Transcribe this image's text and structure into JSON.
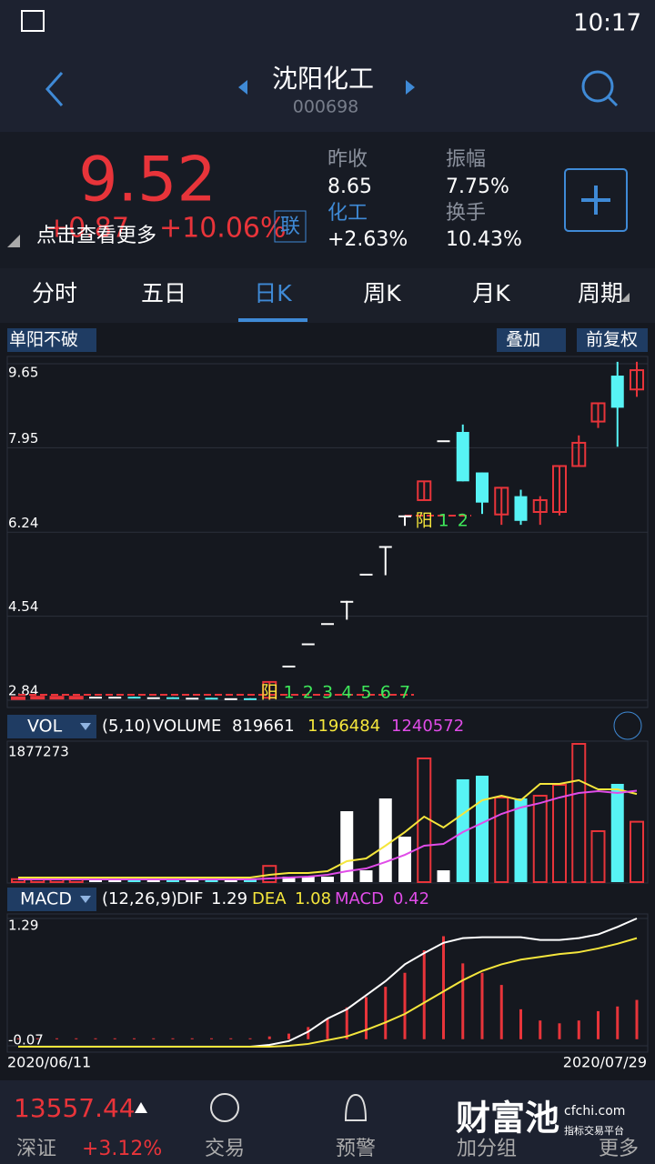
{
  "status": {
    "time": "10:17"
  },
  "header": {
    "name": "沈阳化工",
    "code": "000698"
  },
  "quote": {
    "price": "9.52",
    "change": "+0.87",
    "change_pct": "+10.06%",
    "link": "联",
    "more_hint": "点击查看更多",
    "stats": [
      {
        "label": "昨收",
        "value": "8.65"
      },
      {
        "label": "振幅",
        "value": "7.75%"
      },
      {
        "label": "化工",
        "value": "+2.63%"
      },
      {
        "label": "换手",
        "value": "10.43%"
      }
    ]
  },
  "tabs": [
    "分时",
    "五日",
    "日K",
    "周K",
    "月K",
    "周期"
  ],
  "chart": {
    "indicator": "单阳不破",
    "overlay": "叠加",
    "adjust": "前复权",
    "ylim": [
      2.84,
      9.65
    ],
    "yticks": [
      9.65,
      7.95,
      6.24,
      4.54,
      2.84
    ],
    "candles": [
      {
        "o": 2.89,
        "h": 2.9,
        "l": 2.89,
        "c": 2.9
      },
      {
        "o": 2.9,
        "h": 2.91,
        "l": 2.9,
        "c": 2.91
      },
      {
        "o": 2.9,
        "h": 2.91,
        "l": 2.9,
        "c": 2.91
      },
      {
        "o": 2.9,
        "h": 2.91,
        "l": 2.9,
        "c": 2.91
      },
      {
        "o": 2.91,
        "h": 2.91,
        "l": 2.91,
        "c": 2.91
      },
      {
        "o": 2.91,
        "h": 2.91,
        "l": 2.91,
        "c": 2.91
      },
      {
        "o": 2.91,
        "h": 2.91,
        "l": 2.9,
        "c": 2.9
      },
      {
        "o": 2.9,
        "h": 2.9,
        "l": 2.9,
        "c": 2.9
      },
      {
        "o": 2.9,
        "h": 2.9,
        "l": 2.89,
        "c": 2.89
      },
      {
        "o": 2.89,
        "h": 2.89,
        "l": 2.89,
        "c": 2.89
      },
      {
        "o": 2.89,
        "h": 2.89,
        "l": 2.88,
        "c": 2.88
      },
      {
        "o": 2.88,
        "h": 2.88,
        "l": 2.88,
        "c": 2.88
      },
      {
        "o": 2.88,
        "h": 2.88,
        "l": 2.87,
        "c": 2.87
      },
      {
        "o": 2.89,
        "h": 3.21,
        "l": 2.85,
        "c": 3.21
      },
      {
        "o": 3.54,
        "h": 3.54,
        "l": 3.54,
        "c": 3.54
      },
      {
        "o": 3.99,
        "h": 3.99,
        "l": 3.99,
        "c": 3.99
      },
      {
        "o": 4.4,
        "h": 4.4,
        "l": 4.4,
        "c": 4.4
      },
      {
        "o": 4.85,
        "h": 4.85,
        "l": 4.47,
        "c": 4.85
      },
      {
        "o": 5.4,
        "h": 5.4,
        "l": 5.4,
        "c": 5.4
      },
      {
        "o": 5.96,
        "h": 5.96,
        "l": 5.37,
        "c": 5.96
      },
      {
        "o": 6.58,
        "h": 6.58,
        "l": 6.37,
        "c": 6.58
      },
      {
        "o": 6.89,
        "h": 7.27,
        "l": 6.89,
        "c": 7.27
      },
      {
        "o": 8.1,
        "h": 8.1,
        "l": 8.1,
        "c": 8.1
      },
      {
        "o": 8.27,
        "h": 8.42,
        "l": 7.27,
        "c": 7.27
      },
      {
        "o": 7.45,
        "h": 7.45,
        "l": 6.61,
        "c": 6.84
      },
      {
        "o": 6.6,
        "h": 7.14,
        "l": 6.39,
        "c": 7.14
      },
      {
        "o": 6.97,
        "h": 7.1,
        "l": 6.39,
        "c": 6.47
      },
      {
        "o": 6.65,
        "h": 6.97,
        "l": 6.39,
        "c": 6.89
      },
      {
        "o": 6.65,
        "h": 7.58,
        "l": 6.58,
        "c": 7.58
      },
      {
        "o": 7.58,
        "h": 8.2,
        "l": 7.58,
        "c": 8.05
      },
      {
        "o": 8.48,
        "h": 8.85,
        "l": 8.35,
        "c": 8.85
      },
      {
        "o": 9.41,
        "h": 9.69,
        "l": 7.97,
        "c": 8.76
      },
      {
        "o": 9.13,
        "h": 9.69,
        "l": 8.98,
        "c": 9.52
      }
    ],
    "signals": [
      {
        "mark": "阳",
        "counts": [
          1,
          2,
          3,
          4,
          5,
          6,
          7
        ]
      },
      {
        "mark": "阳",
        "counts": [
          1,
          2
        ]
      }
    ],
    "volume": {
      "label": "VOL",
      "params": "(5,10)",
      "name": "VOLUME",
      "last": 819661,
      "ma5_last": 1196484,
      "ma10_last": 1240572,
      "ylim": [
        0,
        1877273
      ],
      "top": 1877273,
      "values": [
        40000,
        40000,
        40000,
        40000,
        40000,
        40000,
        40000,
        40000,
        40000,
        40000,
        40000,
        40000,
        40000,
        220000,
        74000,
        74000,
        74000,
        963000,
        160000,
        1136000,
        617000,
        1680000,
        160000,
        1396000,
        1445000,
        1149000,
        1136000,
        1173000,
        1321000,
        1877273,
        692000,
        1334000,
        819661
      ],
      "ma5": [
        62000,
        62000,
        62000,
        62000,
        62000,
        62000,
        62000,
        62000,
        62000,
        62000,
        62000,
        62000,
        62000,
        99000,
        123000,
        123000,
        148000,
        284000,
        321000,
        494000,
        679000,
        889000,
        741000,
        926000,
        1111500,
        1173000,
        1111500,
        1333800,
        1333800,
        1383000,
        1259700,
        1259700,
        1196484
      ],
      "ma10": [
        37000,
        37000,
        37000,
        37000,
        37000,
        37000,
        37000,
        37000,
        37000,
        37000,
        37000,
        37000,
        37000,
        49000,
        62000,
        74000,
        99000,
        148000,
        185000,
        272000,
        370000,
        494000,
        519000,
        679000,
        803000,
        926000,
        1013000,
        1074000,
        1149000,
        1210000,
        1235000,
        1210000,
        1240572
      ]
    },
    "macd": {
      "label": "MACD",
      "params": "(12,26,9)",
      "dif_label": "DIF",
      "dif": 1.29,
      "dea_label": "DEA",
      "dea": 1.08,
      "macd_label": "MACD",
      "macd": 0.42,
      "ylim": [
        -0.07,
        1.29
      ],
      "yticks": [
        1.29,
        -0.07
      ],
      "bars": [
        0.01,
        0.01,
        0.01,
        0.01,
        0.01,
        0.01,
        0.01,
        0.01,
        0.01,
        0.01,
        0.01,
        0.01,
        0.01,
        0.03,
        0.06,
        0.13,
        0.22,
        0.34,
        0.45,
        0.56,
        0.71,
        0.95,
        1.1,
        0.81,
        0.71,
        0.58,
        0.32,
        0.2,
        0.17,
        0.2,
        0.3,
        0.35,
        0.42
      ],
      "dif_line": [
        -0.08,
        -0.08,
        -0.08,
        -0.08,
        -0.08,
        -0.08,
        -0.08,
        -0.08,
        -0.08,
        -0.08,
        -0.08,
        -0.08,
        -0.08,
        -0.06,
        -0.02,
        0.08,
        0.22,
        0.32,
        0.47,
        0.62,
        0.8,
        0.92,
        1.03,
        1.08,
        1.09,
        1.09,
        1.09,
        1.06,
        1.06,
        1.08,
        1.12,
        1.2,
        1.29
      ],
      "dea_line": [
        -0.08,
        -0.08,
        -0.08,
        -0.08,
        -0.08,
        -0.08,
        -0.08,
        -0.08,
        -0.08,
        -0.08,
        -0.08,
        -0.08,
        -0.08,
        -0.08,
        -0.07,
        -0.05,
        -0.01,
        0.03,
        0.1,
        0.18,
        0.27,
        0.39,
        0.51,
        0.63,
        0.73,
        0.8,
        0.85,
        0.88,
        0.91,
        0.93,
        0.97,
        1.02,
        1.08
      ]
    },
    "dates": [
      "2020/06/11",
      "2020/07/29"
    ]
  },
  "footer": {
    "index_value": "13557.44",
    "index_name": "深证",
    "index_change": "+3.12%",
    "items": [
      "交易",
      "预警",
      "加分组",
      "更多"
    ],
    "brand": "财富池",
    "brand_url": "cfchi.com",
    "brand_slogan": "指标交易平台"
  }
}
